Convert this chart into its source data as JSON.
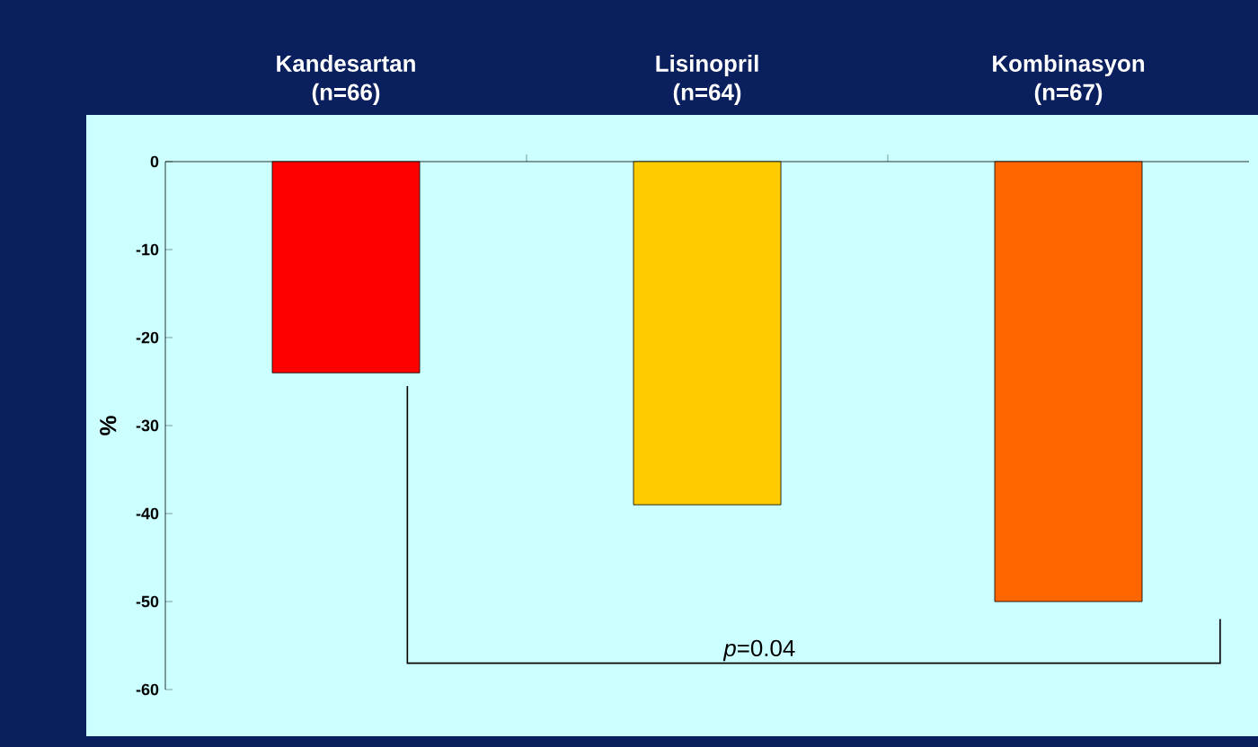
{
  "chart_data": {
    "type": "bar",
    "categories": [
      "Kandesartan (n=66)",
      "Lisinopril (n=64)",
      "Kombinasyon (n=67)"
    ],
    "values": [
      -24,
      -39,
      -50
    ],
    "colors": [
      "#ff0000",
      "#ffcc00",
      "#ff6600"
    ],
    "ylabel": "%",
    "ylim": [
      -60,
      0
    ],
    "yticks": [
      -60,
      -50,
      -40,
      -30,
      -20,
      -10,
      0
    ],
    "annotations": [
      "*p*=0.04"
    ],
    "grid": false
  }
}
